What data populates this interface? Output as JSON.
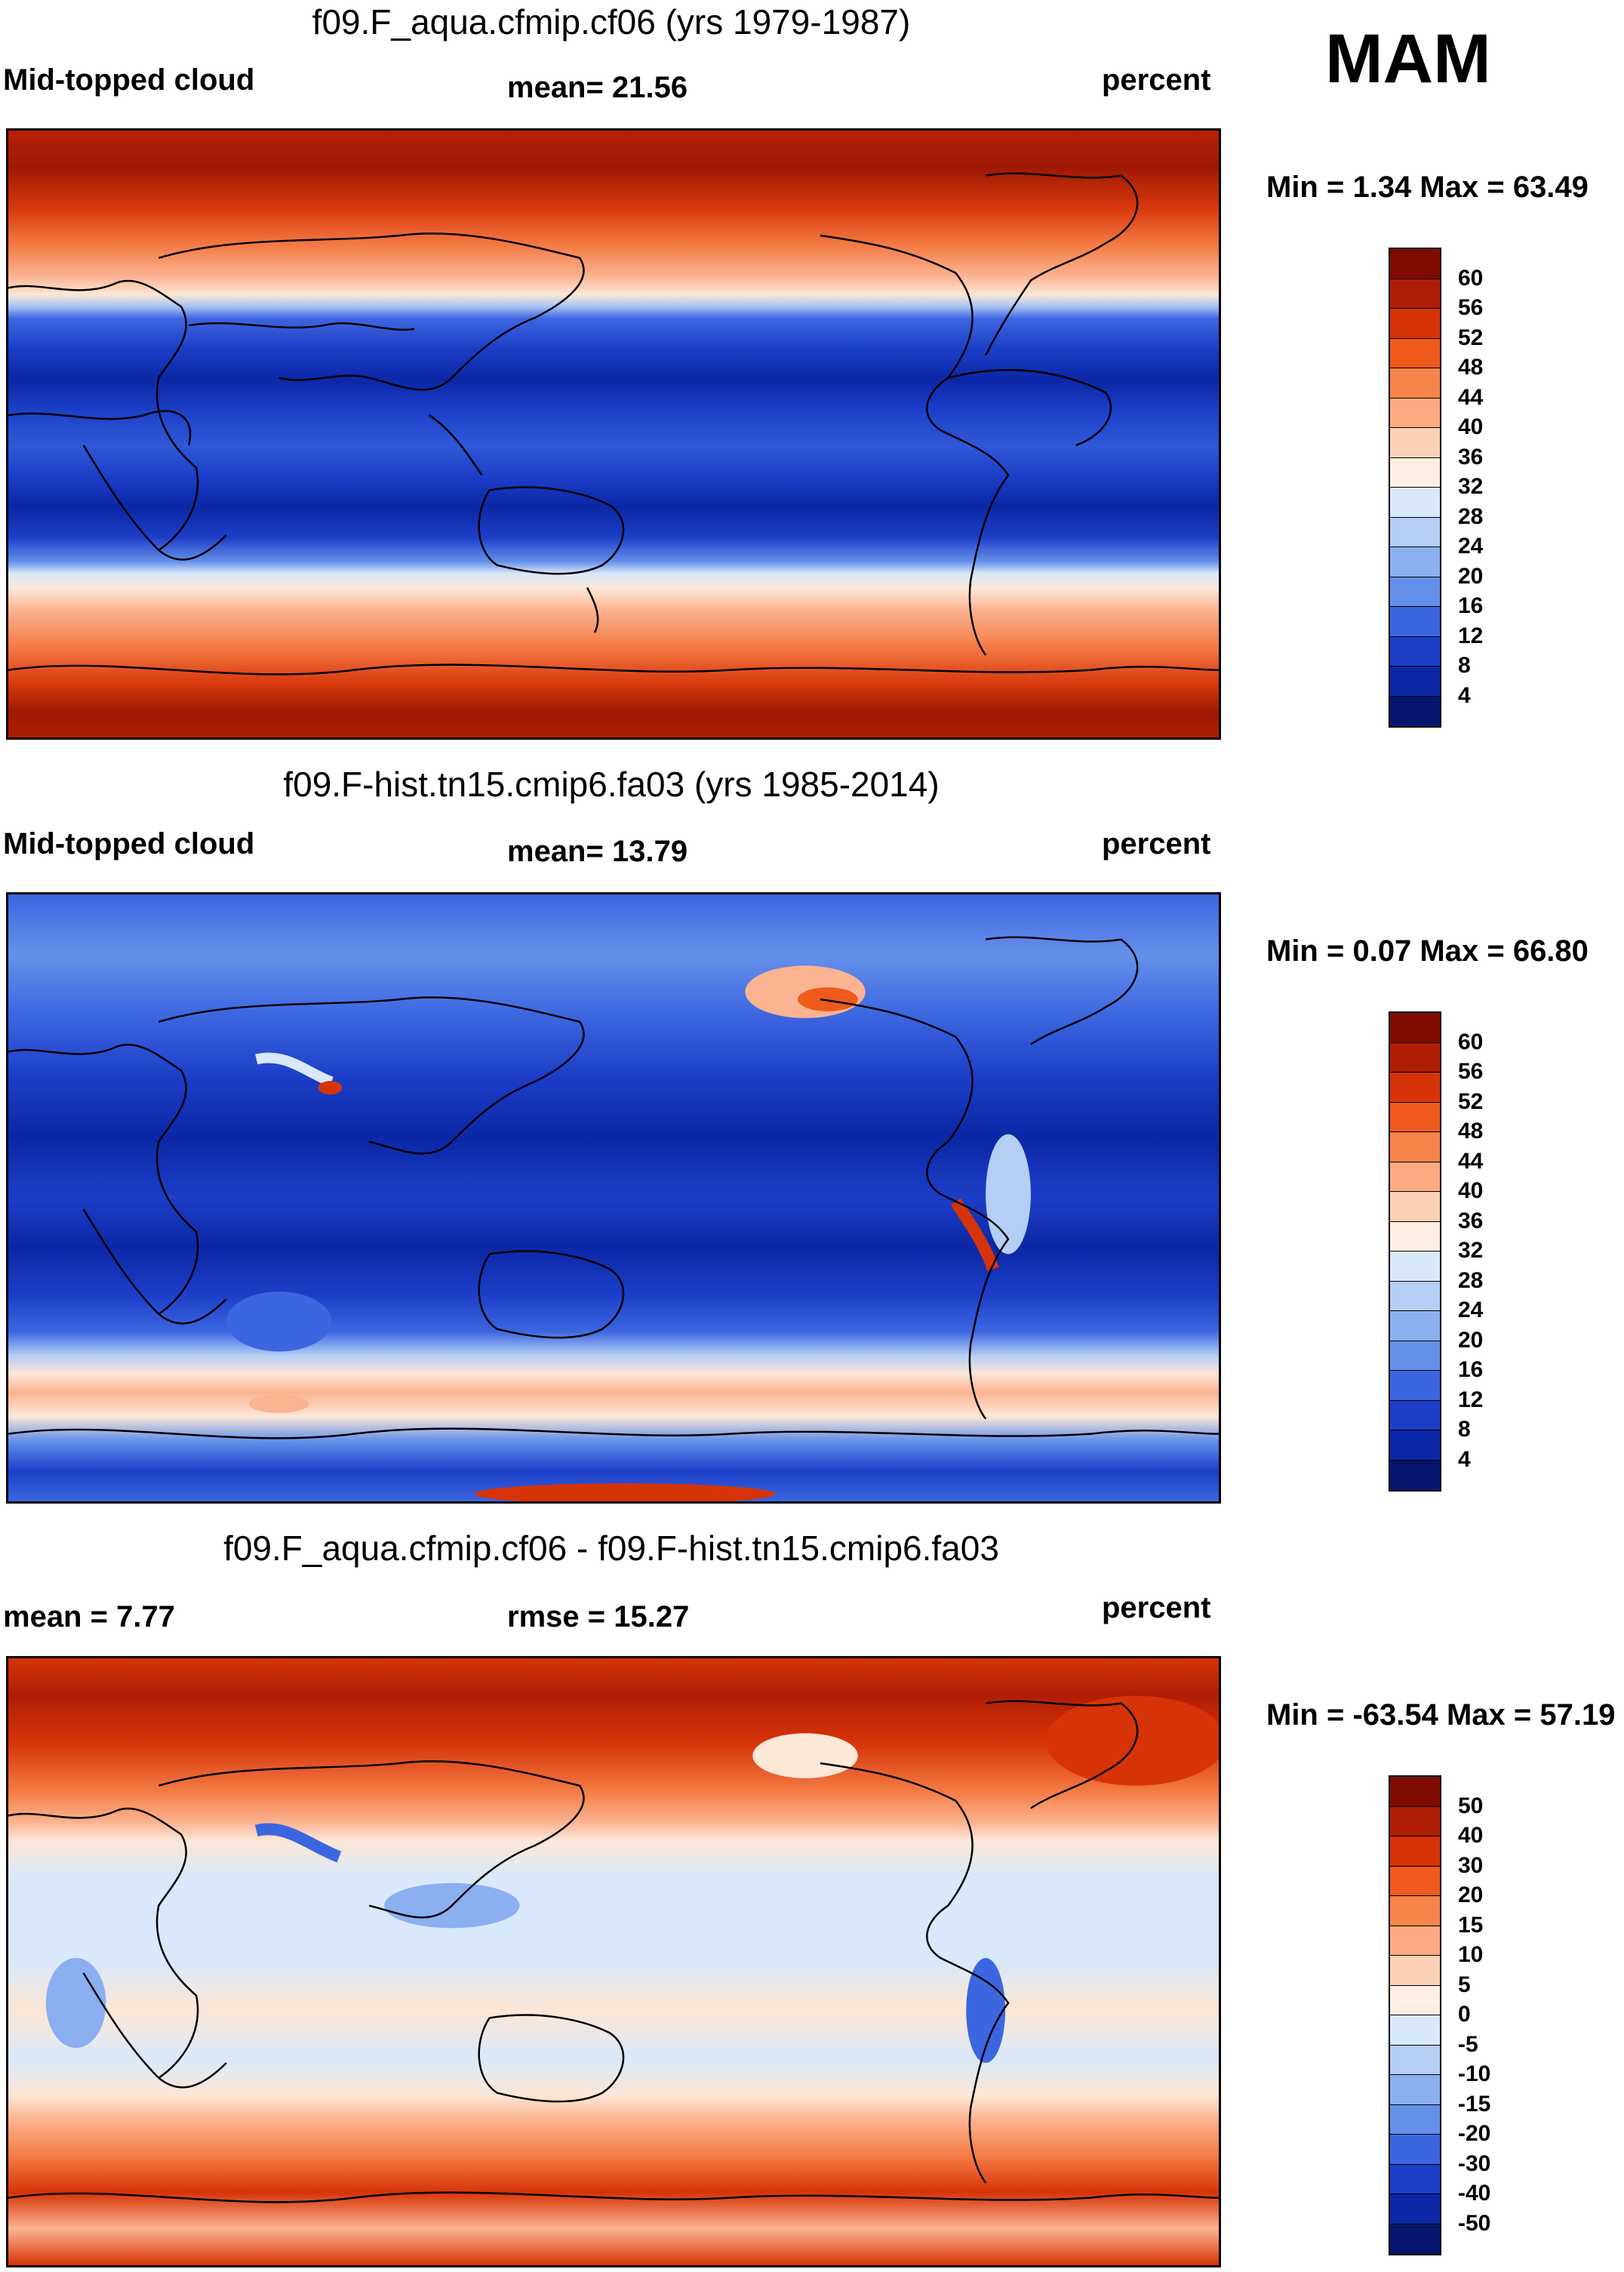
{
  "season": "MAM",
  "units": "percent",
  "panels": [
    {
      "title": "f09.F_aqua.cfmip.cf06 (yrs 1979-1987)",
      "left_label": "Mid-topped cloud",
      "center_label": "mean=  21.56",
      "right_label": "percent",
      "minmax": "Min =   1.34 Max =  63.49"
    },
    {
      "title": "f09.F-hist.tn15.cmip6.fa03 (yrs 1985-2014)",
      "left_label": "Mid-topped cloud",
      "center_label": "mean=  13.79",
      "right_label": "percent",
      "minmax": "Min =   0.07 Max =  66.80"
    },
    {
      "title": "f09.F_aqua.cfmip.cf06 - f09.F-hist.tn15.cmip6.fa03",
      "left_label": "mean =   7.77",
      "center_label": "rmse =  15.27",
      "right_label": "percent",
      "minmax": "Min = -63.54 Max =  57.19"
    }
  ],
  "colorbars": {
    "absolute": {
      "ticks": [
        "60",
        "56",
        "52",
        "48",
        "44",
        "40",
        "36",
        "32",
        "28",
        "24",
        "20",
        "16",
        "12",
        "8",
        "4"
      ],
      "colors": [
        "#7f0b00",
        "#b01d05",
        "#d63408",
        "#f05a1c",
        "#f7844a",
        "#fbaa80",
        "#fcd0b4",
        "#fdf0e3",
        "#d9e8fa",
        "#b4cef5",
        "#8baff0",
        "#6590ea",
        "#3c66e0",
        "#1c3ec8",
        "#0b27a5",
        "#06156e"
      ]
    },
    "difference": {
      "ticks": [
        "50",
        "40",
        "30",
        "20",
        "15",
        "10",
        "5",
        "0",
        "-5",
        "-10",
        "-15",
        "-20",
        "-30",
        "-40",
        "-50"
      ],
      "colors": [
        "#7f0b00",
        "#b01d05",
        "#d63408",
        "#f05a1c",
        "#f7844a",
        "#fbaa80",
        "#fcd0b4",
        "#fdf0e3",
        "#d9e8fa",
        "#b4cef5",
        "#8baff0",
        "#6590ea",
        "#3c66e0",
        "#1c3ec8",
        "#0b27a5",
        "#06156e"
      ]
    }
  }
}
